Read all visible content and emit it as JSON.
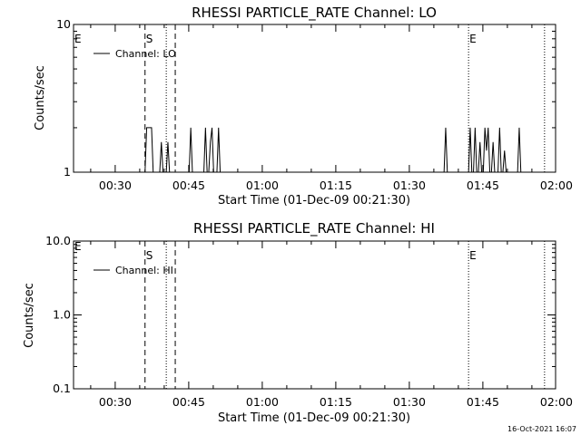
{
  "chart_data": [
    {
      "type": "line",
      "title": "RHESSI PARTICLE_RATE Channel: LO",
      "xlabel": "Start Time (01-Dec-09 00:21:30)",
      "ylabel": "Counts/sec",
      "xlim": [
        "00:21:30",
        "01:59:50"
      ],
      "ylim": [
        1,
        10
      ],
      "yscale": "log",
      "x_ticks": [
        "00:30",
        "00:45",
        "01:00",
        "01:15",
        "01:30",
        "01:45",
        "02:00"
      ],
      "y_ticks": [
        "1",
        "10"
      ],
      "legend": {
        "placement": "top-left",
        "entries": [
          "Channel: LO"
        ]
      },
      "series": [
        {
          "name": "Channel: LO",
          "points": [
            [
              "00:21:30",
              1
            ],
            [
              "00:36:05",
              1
            ],
            [
              "00:36:25",
              2
            ],
            [
              "00:37:25",
              2
            ],
            [
              "00:37:45",
              1
            ],
            [
              "00:39:05",
              1
            ],
            [
              "00:39:25",
              1.6
            ],
            [
              "00:39:45",
              1
            ],
            [
              "00:40:25",
              1
            ],
            [
              "00:40:45",
              1.6
            ],
            [
              "00:41:05",
              1
            ],
            [
              "00:45:05",
              1
            ],
            [
              "00:45:25",
              2
            ],
            [
              "00:45:45",
              1
            ],
            [
              "00:48:05",
              1
            ],
            [
              "00:48:25",
              2
            ],
            [
              "00:48:45",
              1
            ],
            [
              "00:49:05",
              1
            ],
            [
              "00:49:25",
              1.6
            ],
            [
              "00:49:45",
              2
            ],
            [
              "00:50:05",
              1
            ],
            [
              "00:50:45",
              1
            ],
            [
              "00:51:05",
              2
            ],
            [
              "00:51:25",
              1
            ],
            [
              "01:37:05",
              1
            ],
            [
              "01:37:25",
              2
            ],
            [
              "01:37:45",
              1
            ],
            [
              "01:42:05",
              1
            ],
            [
              "01:42:25",
              2
            ],
            [
              "01:42:45",
              1
            ],
            [
              "01:43:05",
              1
            ],
            [
              "01:43:25",
              2
            ],
            [
              "01:43:45",
              1
            ],
            [
              "01:44:05",
              1
            ],
            [
              "01:44:25",
              1.6
            ],
            [
              "01:44:45",
              1
            ],
            [
              "01:45:05",
              1
            ],
            [
              "01:45:25",
              2
            ],
            [
              "01:45:45",
              1.4
            ],
            [
              "01:46:05",
              2
            ],
            [
              "01:46:25",
              1
            ],
            [
              "01:46:45",
              1
            ],
            [
              "01:47:05",
              1.6
            ],
            [
              "01:47:25",
              1
            ],
            [
              "01:48:05",
              1
            ],
            [
              "01:48:25",
              2
            ],
            [
              "01:48:45",
              1
            ],
            [
              "01:49:05",
              1
            ],
            [
              "01:49:25",
              1.4
            ],
            [
              "01:49:45",
              1
            ],
            [
              "01:52:05",
              1
            ],
            [
              "01:52:25",
              2
            ],
            [
              "01:52:45",
              1
            ],
            [
              "01:59:50",
              1
            ]
          ]
        }
      ],
      "vlines": [
        {
          "x": "00:36:05",
          "style": "dashed",
          "label": "S"
        },
        {
          "x": "00:40:25",
          "style": "dotted",
          "label": ""
        },
        {
          "x": "00:42:15",
          "style": "dashed",
          "label": ""
        },
        {
          "x": "01:42:05",
          "style": "dotted",
          "label": "E"
        },
        {
          "x": "01:57:35",
          "style": "dotted",
          "label": ""
        }
      ],
      "edge_marker": "E"
    },
    {
      "type": "line",
      "title": "RHESSI PARTICLE_RATE Channel: HI",
      "xlabel": "Start Time (01-Dec-09 00:21:30)",
      "ylabel": "Counts/sec",
      "xlim": [
        "00:21:30",
        "01:59:50"
      ],
      "ylim": [
        0.1,
        10
      ],
      "yscale": "log",
      "x_ticks": [
        "00:30",
        "00:45",
        "01:00",
        "01:15",
        "01:30",
        "01:45",
        "02:00"
      ],
      "y_ticks": [
        "0.1",
        "1.0",
        "10.0"
      ],
      "legend": {
        "placement": "top-left",
        "entries": [
          "Channel: HI"
        ]
      },
      "series": [
        {
          "name": "Channel: HI",
          "points": []
        }
      ],
      "vlines": [
        {
          "x": "00:36:05",
          "style": "dashed",
          "label": "S"
        },
        {
          "x": "00:40:25",
          "style": "dotted",
          "label": ""
        },
        {
          "x": "00:42:15",
          "style": "dashed",
          "label": ""
        },
        {
          "x": "01:42:05",
          "style": "dotted",
          "label": "E"
        },
        {
          "x": "01:57:35",
          "style": "dotted",
          "label": ""
        }
      ],
      "edge_marker": "E"
    }
  ],
  "timestamp": "16-Oct-2021 16:07"
}
